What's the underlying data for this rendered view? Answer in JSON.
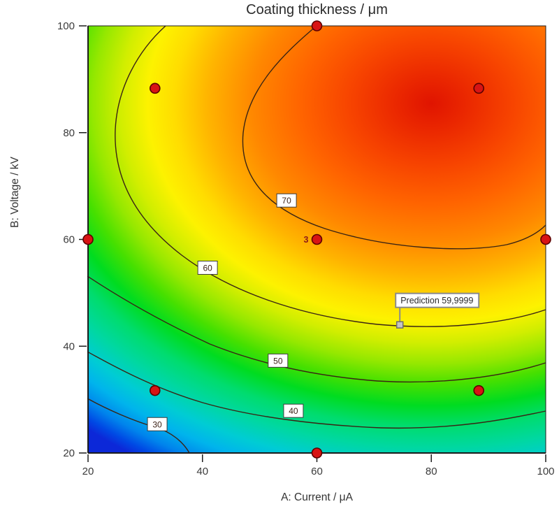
{
  "chart_data": {
    "type": "contour",
    "title": "Coating thickness / μm",
    "xlabel": "A: Current / μA",
    "ylabel": "B: Voltage / kV",
    "xlim": [
      20,
      100
    ],
    "ylim": [
      20,
      100
    ],
    "x_ticks": [
      20,
      40,
      60,
      80,
      100
    ],
    "y_ticks": [
      20,
      40,
      60,
      80,
      100
    ],
    "grid": false,
    "contours": [
      {
        "level": 30,
        "label_pos": {
          "x": 32.1,
          "y": 25.4
        }
      },
      {
        "level": 40,
        "label_pos": {
          "x": 55.9,
          "y": 27.9
        }
      },
      {
        "level": 50,
        "label_pos": {
          "x": 53.2,
          "y": 37.3
        }
      },
      {
        "level": 60,
        "label_pos": {
          "x": 40.9,
          "y": 54.7
        }
      },
      {
        "level": 70,
        "label_pos": {
          "x": 54.7,
          "y": 67.3
        }
      }
    ],
    "design_points": [
      {
        "x": 60,
        "y": 100
      },
      {
        "x": 31.7,
        "y": 88.3
      },
      {
        "x": 88.3,
        "y": 88.3
      },
      {
        "x": 20,
        "y": 60
      },
      {
        "x": 60,
        "y": 60,
        "count": 3
      },
      {
        "x": 100,
        "y": 60
      },
      {
        "x": 31.7,
        "y": 31.7
      },
      {
        "x": 88.3,
        "y": 31.7
      },
      {
        "x": 60,
        "y": 20
      }
    ],
    "prediction_flag": {
      "label": "Prediction",
      "value": "59,9999",
      "x": 74.5,
      "y": 44.0
    },
    "surface": {
      "max_region": {
        "x": 80,
        "y": 85
      },
      "palette_low_to_high": [
        "#0c28d8",
        "#0084ec",
        "#00b4ec",
        "#00ccd4",
        "#00d8a0",
        "#00dc6e",
        "#00dc20",
        "#46e000",
        "#96e800",
        "#d2ee00",
        "#fdf200",
        "#ffdc00",
        "#ffb400",
        "#ff8800",
        "#ff6400",
        "#f74400",
        "#ea2600",
        "#e01400"
      ]
    },
    "colors": {
      "design_point_fill": "#d81414",
      "design_point_stroke": "#5c0000",
      "contour_line": "#3a2414",
      "axis_line": "#1c1c1c",
      "flag_border": "#8a8a8a"
    }
  }
}
